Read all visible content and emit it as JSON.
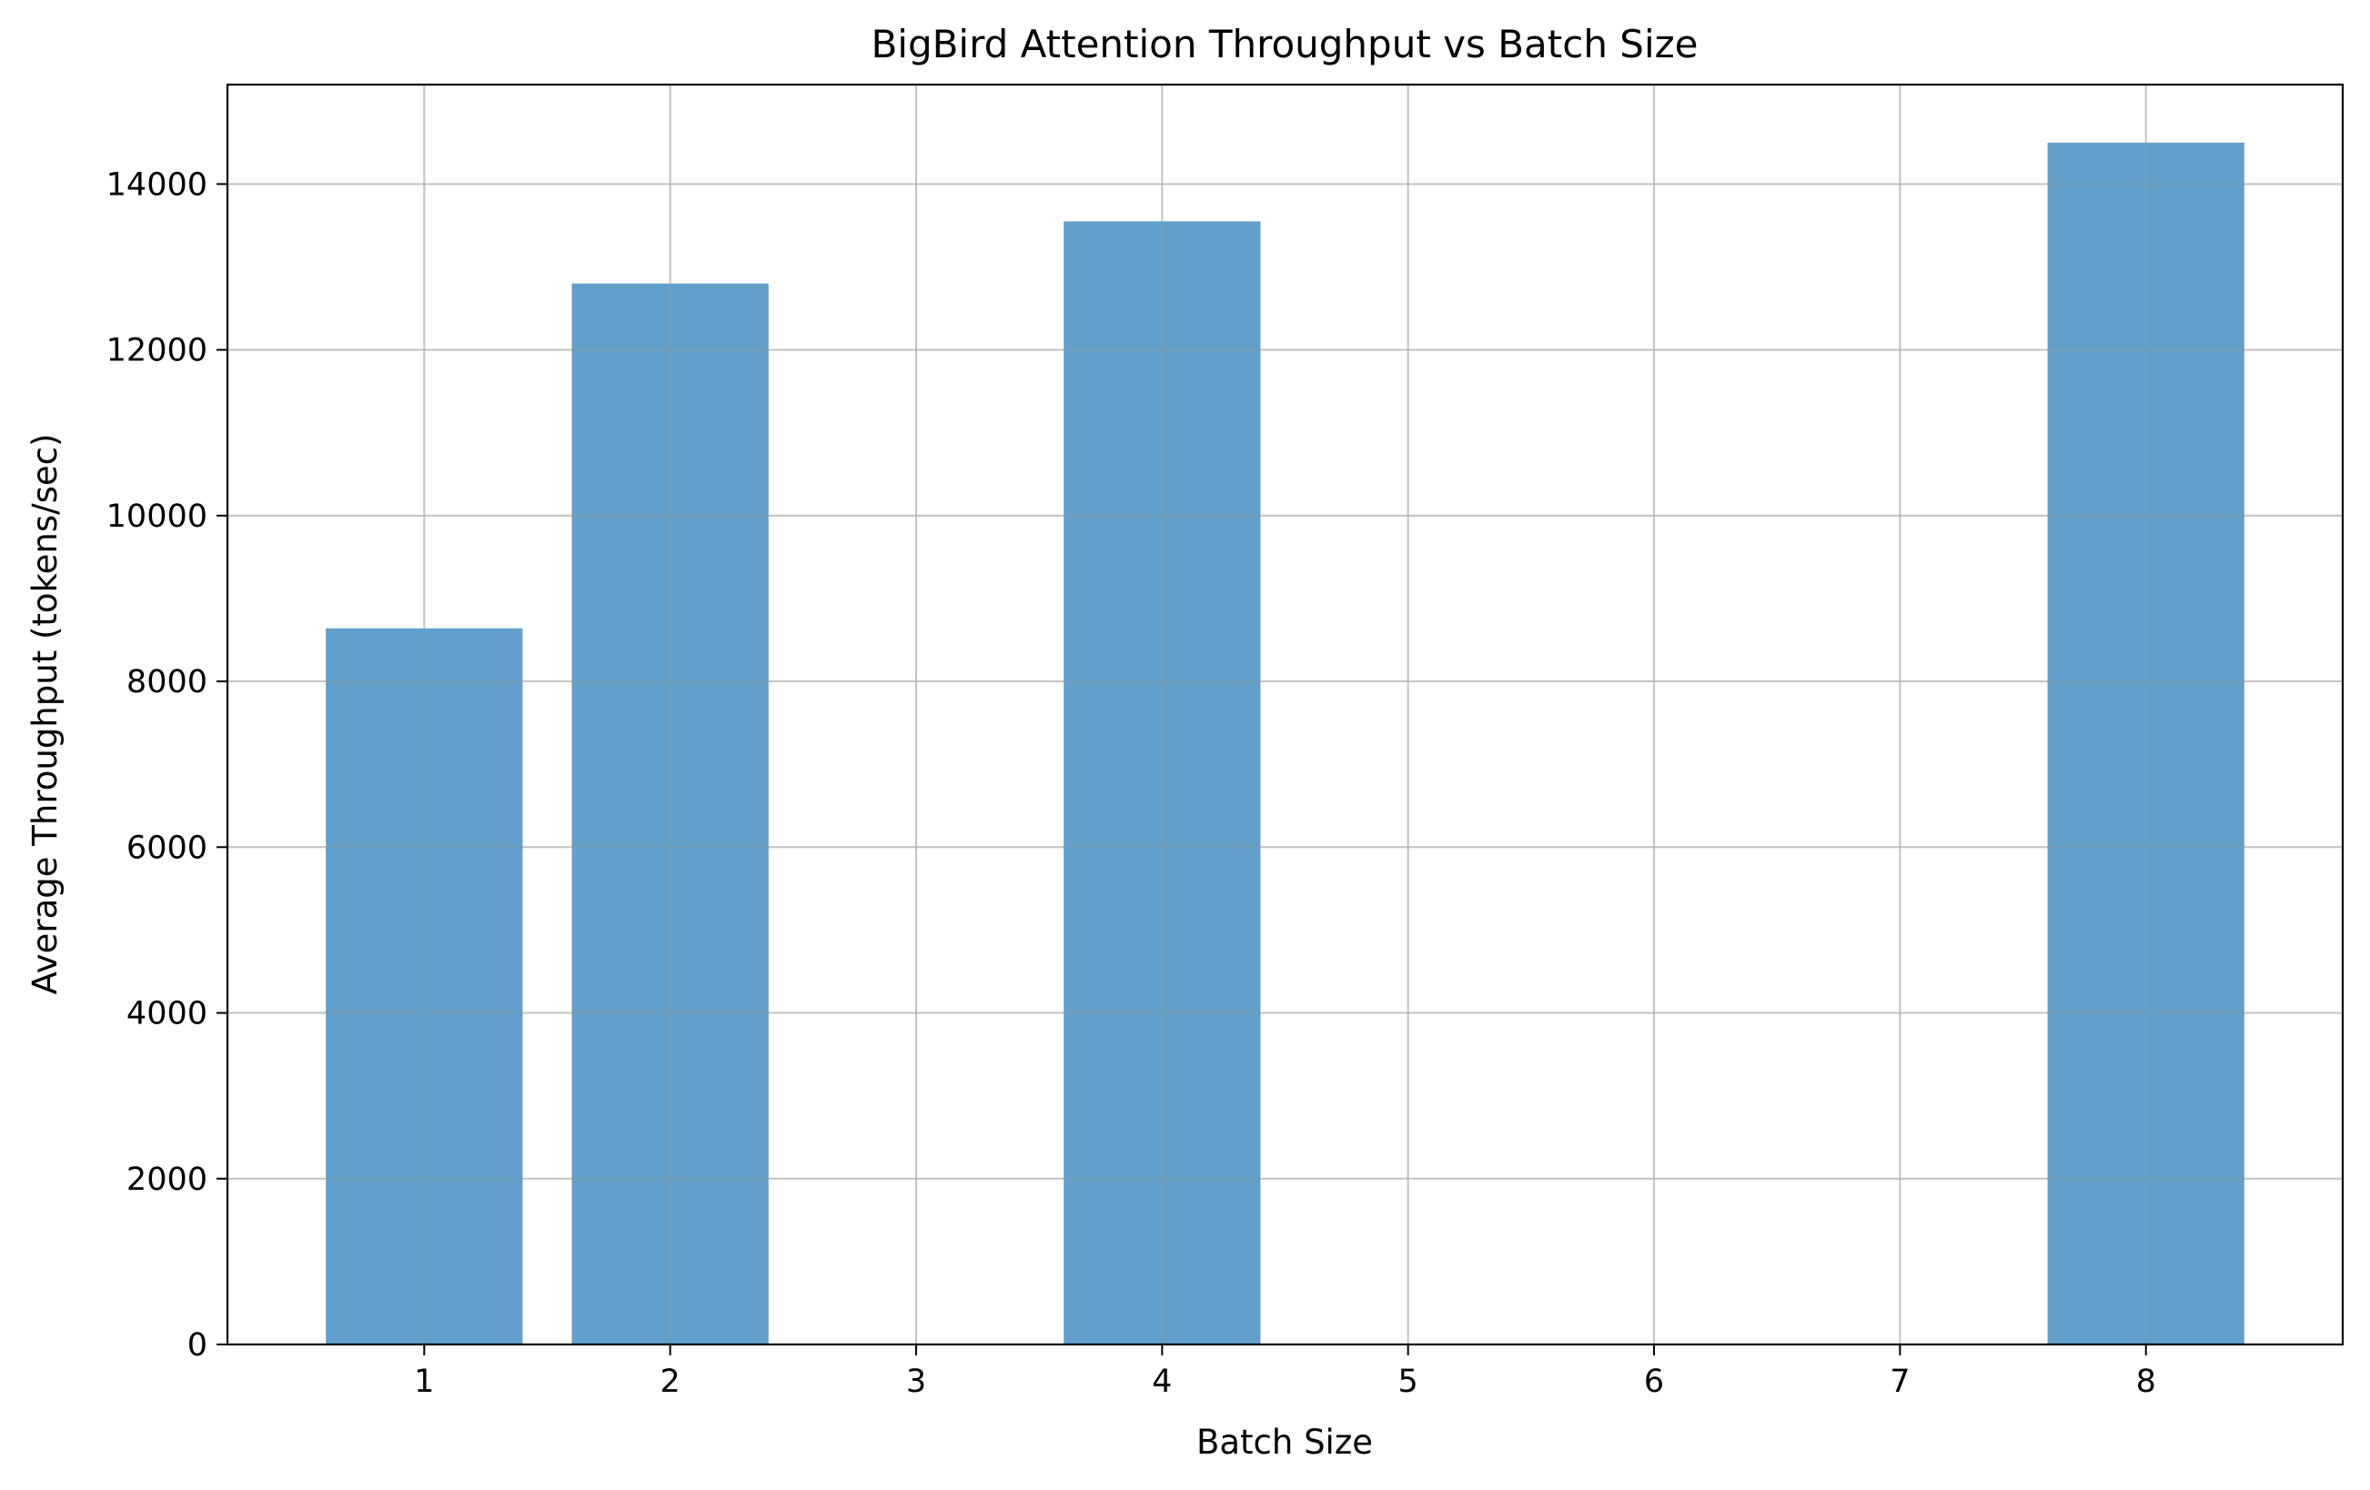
{
  "chart_data": {
    "type": "bar",
    "title": "BigBird Attention Throughput vs Batch Size",
    "xlabel": "Batch Size",
    "ylabel": "Average Throughput (tokens/sec)",
    "x": [
      1,
      2,
      4,
      8
    ],
    "values": [
      8640,
      12800,
      13550,
      14500
    ],
    "xlim": [
      0.2,
      8.8
    ],
    "ylim": [
      0,
      15200
    ],
    "xticks": [
      1,
      2,
      3,
      4,
      5,
      6,
      7,
      8
    ],
    "yticks": [
      0,
      2000,
      4000,
      6000,
      8000,
      10000,
      12000,
      14000
    ],
    "bar_width": 0.8,
    "grid": true,
    "legend": "none",
    "colors": {
      "bar": "#62a0cb",
      "grid": "#dcdcdc",
      "axes": "#000000"
    }
  }
}
